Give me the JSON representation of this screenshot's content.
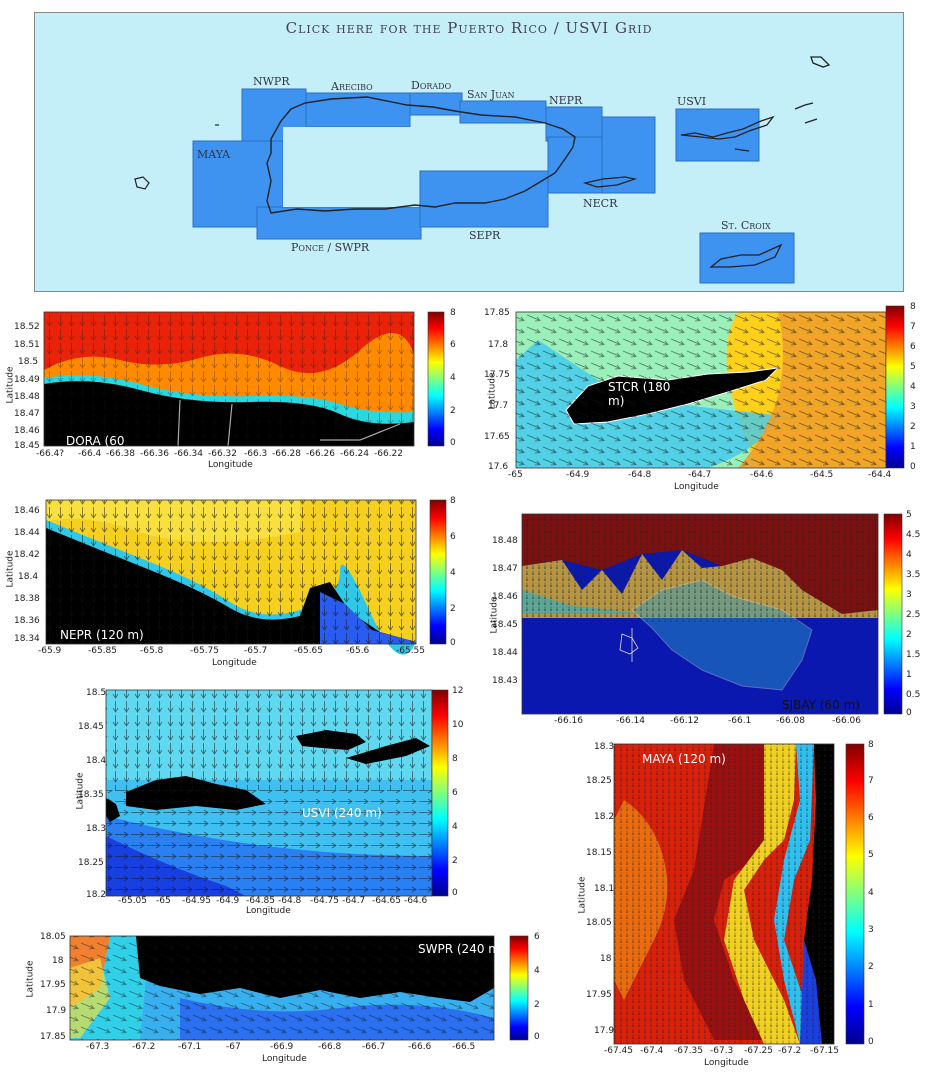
{
  "grid_map": {
    "title": "Click here for the Puerto Rico / USVI Grid",
    "regions": [
      {
        "name": "NWPR"
      },
      {
        "name": "Arecibo"
      },
      {
        "name": "Dorado"
      },
      {
        "name": "San Juan"
      },
      {
        "name": "NEPR"
      },
      {
        "name": "USVI"
      },
      {
        "name": "MAYA"
      },
      {
        "name": "NECR"
      },
      {
        "name": "SEPR"
      },
      {
        "name": "Ponce / SWPR"
      },
      {
        "name": "St. Croix"
      }
    ],
    "colors": {
      "sea": "#c4eef8",
      "box": "#3f93f0",
      "coast": "#222222"
    }
  },
  "panels": [
    {
      "id": "dora",
      "label": "DORA (60",
      "xlabel": "Longitude",
      "ylabel": "Latitude",
      "xticks": [
        "-66.4?",
        "-66.4",
        "-66.38",
        "-66.36",
        "-66.34",
        "-66.32",
        "-66.3",
        "-66.28",
        "-66.26",
        "-66.24",
        "-66.22"
      ],
      "yticks": [
        "18.52",
        "18.51",
        "18.5",
        "18.49",
        "18.48",
        "18.47",
        "18.46",
        "18.45"
      ],
      "cbticks": [
        "8",
        "6",
        "4",
        "2",
        "0"
      ]
    },
    {
      "id": "stcr",
      "label": "STCR (180 m)",
      "xlabel": "Longitude",
      "ylabel": "Latitude",
      "xticks": [
        "-65",
        "-64.9",
        "-64.8",
        "-64.7",
        "-64.6",
        "-64.5",
        "-64.4"
      ],
      "yticks": [
        "17.85",
        "17.8",
        "17.75",
        "17.7",
        "17.65",
        "17.6"
      ],
      "cbticks": [
        "8",
        "7",
        "6",
        "5",
        "4",
        "3",
        "2",
        "1",
        "0"
      ]
    },
    {
      "id": "nepr",
      "label": "NEPR (120 m)",
      "xlabel": "Longitude",
      "ylabel": "Latitude",
      "xticks": [
        "-65.9",
        "-65.85",
        "-65.8",
        "-65.75",
        "-65.7",
        "-65.65",
        "-65.6",
        "-65.55"
      ],
      "yticks": [
        "18.46",
        "18.44",
        "18.42",
        "18.4",
        "18.38",
        "18.36",
        "18.34"
      ],
      "cbticks": [
        "8",
        "6",
        "4",
        "2",
        "0"
      ]
    },
    {
      "id": "sjbay",
      "label": "SJBAY (60 m)",
      "xlabel": "",
      "ylabel": "Latitude",
      "xticks": [
        "-66.16",
        "-66.14",
        "-66.12",
        "-66.1",
        "-66.08",
        "-66.06"
      ],
      "yticks": [
        "18.48",
        "18.47",
        "18.46",
        "18.45",
        "18.44",
        "18.43"
      ],
      "cbticks": [
        "5",
        "4.5",
        "4",
        "3.5",
        "3",
        "2.5",
        "2",
        "1.5",
        "1",
        "0.5",
        "0"
      ]
    },
    {
      "id": "usvi",
      "label": "USVI (240 m)",
      "xlabel": "Longitude",
      "ylabel": "Latitude",
      "xticks": [
        "-65.05",
        "-65",
        "-64.95",
        "-64.9",
        "-64.85",
        "-64.8",
        "-64.75",
        "-64.7",
        "-64.65",
        "-64.6"
      ],
      "yticks": [
        "18.5",
        "18.45",
        "18.4",
        "18.35",
        "18.3",
        "18.25",
        "18.2"
      ],
      "cbticks": [
        "12",
        "10",
        "8",
        "6",
        "4",
        "2",
        "0"
      ]
    },
    {
      "id": "maya",
      "label": "MAYA (120 m)",
      "xlabel": "Longitude",
      "ylabel": "Latitude",
      "xticks": [
        "-67.45",
        "-67.4",
        "-67.35",
        "-67.3",
        "-67.25",
        "-67.2",
        "-67.15"
      ],
      "yticks": [
        "18.3",
        "18.25",
        "18.2",
        "18.15",
        "18.1",
        "18.05",
        "18",
        "17.95",
        "17.9"
      ],
      "cbticks": [
        "8",
        "7",
        "6",
        "5",
        "4",
        "3",
        "2",
        "1",
        "0"
      ]
    },
    {
      "id": "swpr",
      "label": "SWPR (240 m",
      "xlabel": "Longitude",
      "ylabel": "Latitude",
      "xticks": [
        "-67.3",
        "-67.2",
        "-67.1",
        "-67",
        "-66.9",
        "-66.8",
        "-66.7",
        "-66.6",
        "-66.5"
      ],
      "yticks": [
        "18.05",
        "18",
        "17.95",
        "17.9",
        "17.85"
      ],
      "cbticks": [
        "6",
        "4",
        "2",
        "0"
      ]
    }
  ]
}
